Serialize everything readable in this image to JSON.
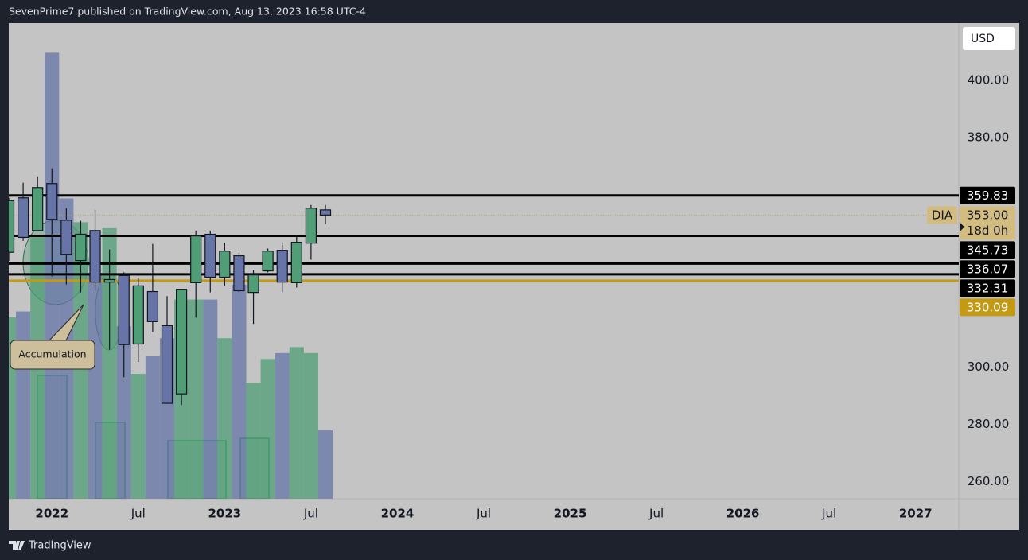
{
  "header": {
    "text": "SevenPrime7 published on TradingView.com, Aug 13, 2023 16:58 UTC-4"
  },
  "footer": {
    "brand": "TradingView"
  },
  "chart_data": {
    "type": "candlestick",
    "currency": "USD",
    "symbol": "DIA",
    "countdown": "18d 0h",
    "x": [
      "2021-10",
      "2021-11",
      "2021-12",
      "2022-01",
      "2022-02",
      "2022-03",
      "2022-04",
      "2022-05",
      "2022-06",
      "2022-07",
      "2022-08",
      "2022-09",
      "2022-10",
      "2022-11",
      "2022-12",
      "2023-01",
      "2023-02",
      "2023-03",
      "2023-04",
      "2023-05",
      "2023-06",
      "2023-07",
      "2023-08"
    ],
    "open": [
      340,
      359,
      347.6,
      364,
      351.2,
      337.1,
      347.6,
      329.6,
      331.9,
      308,
      326.3,
      314.4,
      290.6,
      329.4,
      346.3,
      331.3,
      338.8,
      326,
      333.5,
      340.7,
      329.4,
      343.2,
      354.8
    ],
    "high": [
      359,
      364.3,
      366.5,
      369.3,
      355.4,
      351,
      354.8,
      341,
      333,
      331,
      342.9,
      324.7,
      327.1,
      347.6,
      347.6,
      343.4,
      339.9,
      333.8,
      341.3,
      343.4,
      345.7,
      356.5,
      356.5
    ],
    "low": [
      337,
      344,
      347.6,
      331.6,
      328.8,
      326,
      326.6,
      306,
      296.4,
      301.7,
      312.2,
      287.3,
      286.7,
      317.2,
      326,
      328.3,
      326,
      315,
      333,
      326,
      327.7,
      337.4,
      349.9
    ],
    "close": [
      358,
      345.2,
      362.6,
      351.5,
      339.3,
      346.3,
      329.6,
      330.5,
      307.8,
      328.3,
      315.8,
      287.3,
      327.1,
      345.7,
      331.3,
      340.4,
      326.6,
      332.1,
      340.4,
      329.6,
      343.5,
      355.4,
      353
    ],
    "volume": [
      61,
      63,
      88,
      150,
      101,
      93,
      76,
      91,
      58,
      42,
      48,
      54,
      67,
      67,
      67,
      54,
      72,
      39,
      47,
      49,
      51,
      49,
      23
    ],
    "volume_lim": [
      0,
      160
    ],
    "up_color": "#4f9e76",
    "down_color": "#6674a8",
    "xlim": [
      "2021-10",
      "2027-04"
    ],
    "xticks": [
      {
        "value": "2022-01",
        "label": "2022"
      },
      {
        "value": "2022-07",
        "label": "Jul"
      },
      {
        "value": "2023-01",
        "label": "2023"
      },
      {
        "value": "2023-07",
        "label": "Jul"
      },
      {
        "value": "2024-01",
        "label": "2024"
      },
      {
        "value": "2024-07",
        "label": "Jul"
      },
      {
        "value": "2025-01",
        "label": "2025"
      },
      {
        "value": "2025-07",
        "label": "Jul"
      },
      {
        "value": "2026-01",
        "label": "2026"
      },
      {
        "value": "2026-07",
        "label": "Jul"
      },
      {
        "value": "2027-01",
        "label": "2027"
      }
    ],
    "ylim": [
      254,
      420
    ],
    "yticks": [
      {
        "value": 260,
        "label": "260.00"
      },
      {
        "value": 280,
        "label": "280.00"
      },
      {
        "value": 300,
        "label": "300.00"
      },
      {
        "value": 380,
        "label": "380.00"
      },
      {
        "value": 400,
        "label": "400.00"
      }
    ],
    "last_price": {
      "value": 353,
      "label": "353.00"
    },
    "levels": [
      {
        "value": 359.83,
        "color": "#000000"
      },
      {
        "value": 345.73,
        "color": "#000000"
      },
      {
        "value": 336.07,
        "color": "#000000"
      },
      {
        "value": 332.31,
        "color": "#000000"
      },
      {
        "value": 330.09,
        "color": "#c49a12"
      }
    ],
    "annotations": [
      {
        "text": "Accumulation"
      }
    ]
  }
}
